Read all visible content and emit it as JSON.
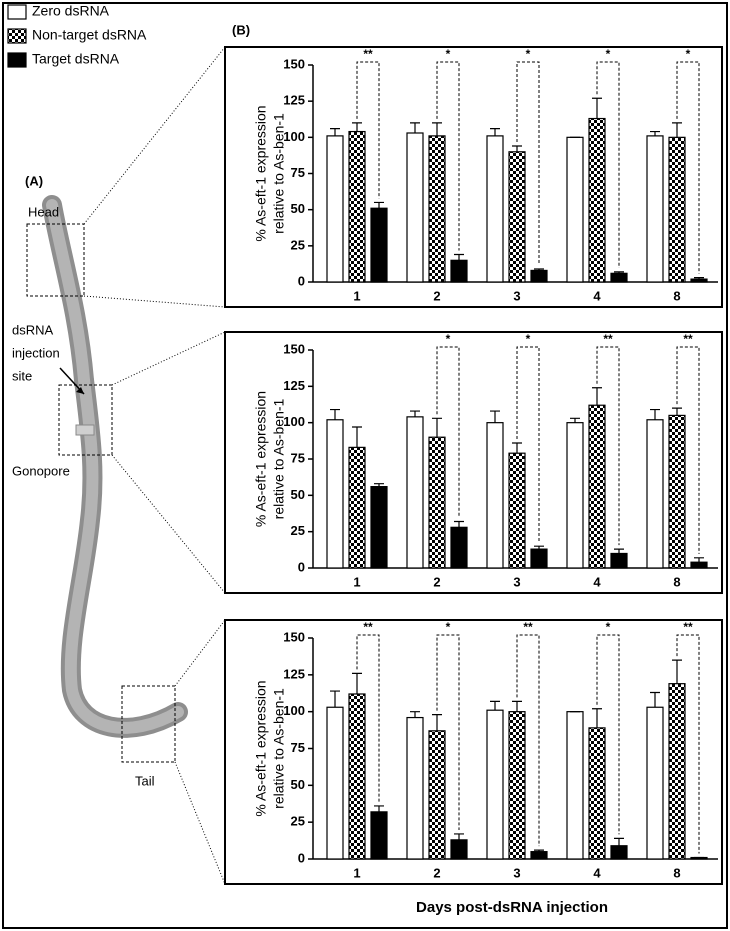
{
  "figure_labels": {
    "a": "(A)",
    "b": "(B)"
  },
  "diagram": {
    "head": "Head",
    "injection_site": [
      "dsRNA",
      "injection",
      "site"
    ],
    "gonopore": "Gonopore",
    "tail": "Tail"
  },
  "chart_data": [
    {
      "type": "bar",
      "y_label": [
        "% As-eft-1 expression",
        "relative to As-ben-1"
      ],
      "categories": [
        "1",
        "2",
        "3",
        "4",
        "8"
      ],
      "series": [
        {
          "name": "Zero dsRNA",
          "color": "#ffffff",
          "values": [
            101,
            103,
            101,
            100,
            101
          ],
          "errors": [
            5,
            7,
            5,
            0,
            3
          ]
        },
        {
          "name": "Non-target dsRNA",
          "color": "#000000",
          "fill_pattern": "checkerboard",
          "values": [
            104,
            101,
            90,
            113,
            100
          ],
          "errors": [
            6,
            9,
            4,
            14,
            10
          ]
        },
        {
          "name": "Target dsRNA",
          "color": "#000000",
          "values": [
            51,
            15,
            8,
            6,
            2
          ],
          "errors": [
            4,
            4,
            1,
            1,
            1
          ]
        }
      ],
      "significance": [
        "**",
        "*",
        "*",
        "*",
        "*"
      ],
      "ylim": [
        0,
        150
      ],
      "yticks": [
        0,
        25,
        50,
        75,
        100,
        125,
        150
      ]
    },
    {
      "type": "bar",
      "y_label": [
        "% As-eft-1 expression",
        "relative to As-ben-1"
      ],
      "categories": [
        "1",
        "2",
        "3",
        "4",
        "8"
      ],
      "series": [
        {
          "name": "Zero dsRNA",
          "color": "#ffffff",
          "values": [
            102,
            104,
            100,
            100,
            102
          ],
          "errors": [
            7,
            4,
            8,
            3,
            7
          ]
        },
        {
          "name": "Non-target dsRNA",
          "color": "#000000",
          "fill_pattern": "checkerboard",
          "values": [
            83,
            90,
            79,
            112,
            105
          ],
          "errors": [
            14,
            13,
            7,
            12,
            5
          ]
        },
        {
          "name": "Target dsRNA",
          "color": "#000000",
          "values": [
            56,
            28,
            13,
            10,
            4
          ],
          "errors": [
            2,
            4,
            2,
            3,
            3
          ]
        }
      ],
      "significance": [
        null,
        "*",
        "*",
        "**",
        "**"
      ],
      "ylim": [
        0,
        150
      ],
      "yticks": [
        0,
        25,
        50,
        75,
        100,
        125,
        150
      ]
    },
    {
      "type": "bar",
      "y_label": [
        "% As-eft-1 expression",
        "relative to As-ben-1"
      ],
      "x_label": "Days post-dsRNA injection",
      "categories": [
        "1",
        "2",
        "3",
        "4",
        "8"
      ],
      "series": [
        {
          "name": "Zero dsRNA",
          "color": "#ffffff",
          "values": [
            103,
            96,
            101,
            100,
            103
          ],
          "errors": [
            11,
            4,
            6,
            0,
            10
          ]
        },
        {
          "name": "Non-target dsRNA",
          "color": "#000000",
          "fill_pattern": "checkerboard",
          "values": [
            112,
            87,
            100,
            89,
            119
          ],
          "errors": [
            14,
            11,
            7,
            13,
            16
          ]
        },
        {
          "name": "Target dsRNA",
          "color": "#000000",
          "values": [
            32,
            13,
            5,
            9,
            1
          ],
          "errors": [
            4,
            4,
            1,
            5,
            0
          ]
        }
      ],
      "significance": [
        "**",
        "*",
        "**",
        "*",
        "**"
      ],
      "ylim": [
        0,
        150
      ],
      "yticks": [
        0,
        25,
        50,
        75,
        100,
        125,
        150
      ]
    }
  ]
}
